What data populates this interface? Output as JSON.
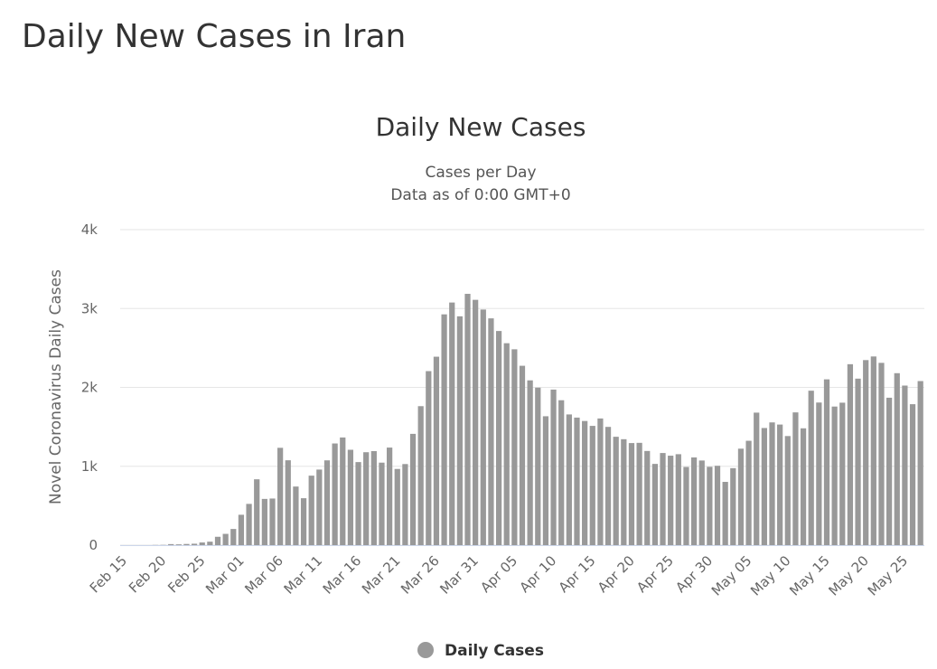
{
  "page_title": "Daily New Cases in Iran",
  "chart_data": {
    "type": "bar",
    "title": "Daily New Cases",
    "subtitle": [
      "Cases per Day",
      "Data as of 0:00 GMT+0"
    ],
    "y_label": "Novel Coronavirus Daily Cases",
    "categories": [
      "Feb 15",
      null,
      null,
      null,
      null,
      "Feb 20",
      null,
      null,
      null,
      null,
      "Feb 25",
      null,
      null,
      null,
      null,
      "Mar 01",
      null,
      null,
      null,
      null,
      "Mar 06",
      null,
      null,
      null,
      null,
      "Mar 11",
      null,
      null,
      null,
      null,
      "Mar 16",
      null,
      null,
      null,
      null,
      "Mar 21",
      null,
      null,
      null,
      null,
      "Mar 26",
      null,
      null,
      null,
      null,
      "Mar 31",
      null,
      null,
      null,
      null,
      "Apr 05",
      null,
      null,
      null,
      null,
      "Apr 10",
      null,
      null,
      null,
      null,
      "Apr 15",
      null,
      null,
      null,
      null,
      "Apr 20",
      null,
      null,
      null,
      null,
      "Apr 25",
      null,
      null,
      null,
      null,
      "Apr 30",
      null,
      null,
      null,
      null,
      "May 05",
      null,
      null,
      null,
      null,
      "May 10",
      null,
      null,
      null,
      null,
      "May 15",
      null,
      null,
      null,
      null,
      "May 20",
      null,
      null,
      null,
      null,
      "May 25",
      null,
      null
    ],
    "series": [
      {
        "name": "Daily Cases",
        "color": "#999999",
        "values": [
          0,
          0,
          0,
          0,
          2,
          3,
          13,
          10,
          15,
          18,
          34,
          44,
          106,
          143,
          205,
          385,
          523,
          835,
          586,
          591,
          1234,
          1076,
          743,
          595,
          881,
          958,
          1075,
          1289,
          1365,
          1209,
          1053,
          1178,
          1192,
          1046,
          1237,
          966,
          1028,
          1411,
          1762,
          2206,
          2389,
          2926,
          3076,
          2901,
          3186,
          3110,
          2987,
          2875,
          2715,
          2560,
          2483,
          2274,
          2089,
          1997,
          1634,
          1972,
          1837,
          1657,
          1617,
          1574,
          1512,
          1606,
          1499,
          1374,
          1343,
          1294,
          1297,
          1194,
          1030,
          1168,
          1134,
          1153,
          991,
          1112,
          1073,
          993,
          1006,
          802,
          976,
          1223,
          1323,
          1680,
          1485,
          1556,
          1529,
          1383,
          1683,
          1481,
          1958,
          1808,
          2102,
          1757,
          1806,
          2294,
          2111,
          2346,
          2392,
          2311,
          1869,
          2180,
          2023,
          1787,
          2080
        ]
      }
    ],
    "ylim": [
      0,
      4000
    ],
    "yticks": [
      0,
      {
        "value": 1000,
        "label": "1k"
      },
      {
        "value": 2000,
        "label": "2k"
      },
      {
        "value": 3000,
        "label": "3k"
      },
      {
        "value": 4000,
        "label": "4k"
      }
    ],
    "grid": true,
    "legend": "bottom"
  }
}
